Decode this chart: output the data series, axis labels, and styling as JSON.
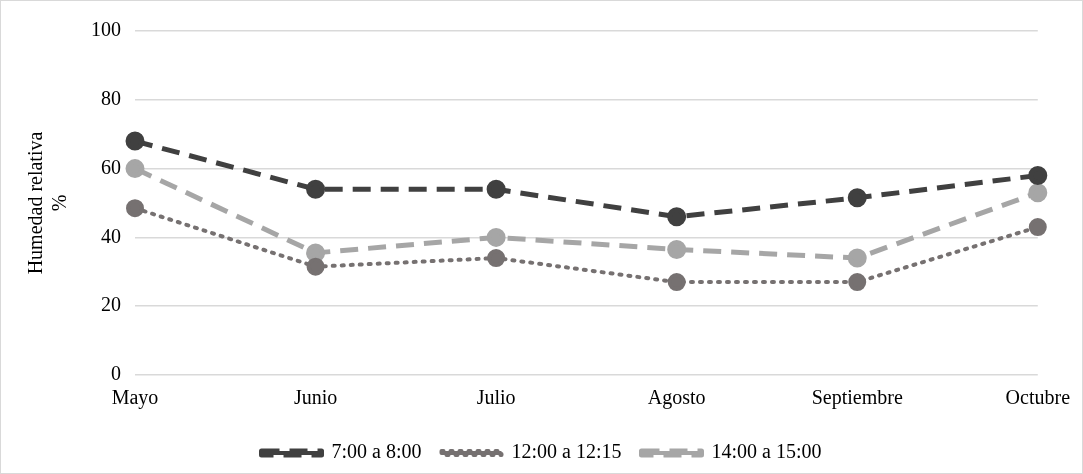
{
  "chart_data": {
    "type": "line",
    "ylabel": "Humedad relativa %",
    "categories": [
      "Mayo",
      "Junio",
      "Julio",
      "Agosto",
      "Septiembre",
      "Octubre"
    ],
    "series": [
      {
        "name": "7:00 a 8:00",
        "color": "#404040",
        "line_style": "dashed",
        "values": [
          68,
          54,
          54,
          46,
          51.5,
          58
        ]
      },
      {
        "name": "12:00 a 12:15",
        "color": "#767171",
        "line_style": "dotted",
        "values": [
          48.5,
          31.5,
          34,
          27,
          27,
          43
        ]
      },
      {
        "name": "14:00 a 15:00",
        "color": "#a6a6a6",
        "line_style": "dashed",
        "values": [
          60,
          35.5,
          40,
          36.5,
          34,
          53
        ]
      }
    ],
    "ylim": [
      0,
      100
    ],
    "yticks": [
      0,
      20,
      40,
      60,
      80,
      100
    ],
    "grid": "y",
    "legend": "bottom",
    "marker": "circle"
  }
}
